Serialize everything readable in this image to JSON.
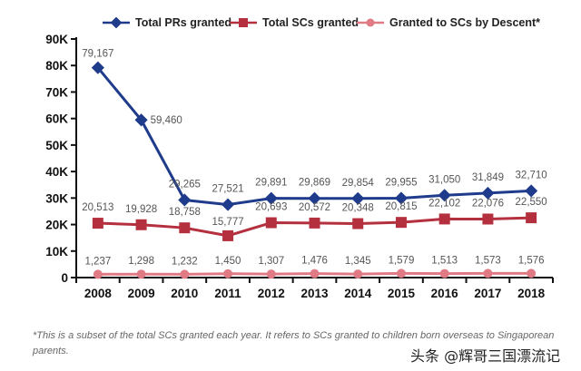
{
  "chart_data": {
    "type": "line",
    "title": "",
    "xlabel": "",
    "ylabel": "",
    "categories": [
      "2008",
      "2009",
      "2010",
      "2011",
      "2012",
      "2013",
      "2014",
      "2015",
      "2016",
      "2017",
      "2018"
    ],
    "ylim": [
      0,
      90000
    ],
    "yticks": [
      0,
      10000,
      20000,
      30000,
      40000,
      50000,
      60000,
      70000,
      80000,
      90000
    ],
    "ytick_labels": [
      "0",
      "10K",
      "20K",
      "30K",
      "40K",
      "50K",
      "60K",
      "70K",
      "80K",
      "90K"
    ],
    "grid": false,
    "legend_position": "top-center",
    "series": [
      {
        "name": "Total PRs granted",
        "color": "#1f3b8c",
        "marker": "diamond",
        "values": [
          79167,
          59460,
          29265,
          27521,
          29891,
          29869,
          29854,
          29955,
          31050,
          31849,
          32710
        ],
        "labels": [
          "79,167",
          "59,460",
          "29,265",
          "27,521",
          "29,891",
          "29,869",
          "29,854",
          "29,955",
          "31,050",
          "31,849",
          "32,710"
        ]
      },
      {
        "name": "Total SCs granted",
        "color": "#b5303f",
        "marker": "square",
        "values": [
          20513,
          19928,
          18758,
          15777,
          20693,
          20572,
          20348,
          20815,
          22102,
          22076,
          22550
        ],
        "labels": [
          "20,513",
          "19,928",
          "18,758",
          "15,777",
          "20,693",
          "20,572",
          "20,348",
          "20,815",
          "22,102",
          "22,076",
          "22,550"
        ]
      },
      {
        "name": "Granted to SCs by Descent*",
        "color": "#e07b86",
        "marker": "circle",
        "values": [
          1237,
          1298,
          1232,
          1450,
          1307,
          1476,
          1345,
          1579,
          1513,
          1573,
          1576
        ],
        "labels": [
          "1,237",
          "1,298",
          "1,232",
          "1,450",
          "1,307",
          "1,476",
          "1,345",
          "1,579",
          "1,513",
          "1,573",
          "1,576"
        ]
      }
    ],
    "annotations": {
      "footnote": "*This is a subset of the total SCs granted each year. It refers to SCs granted to children born overseas to Singaporean parents."
    }
  },
  "watermark": "头条 @辉哥三国漂流记"
}
